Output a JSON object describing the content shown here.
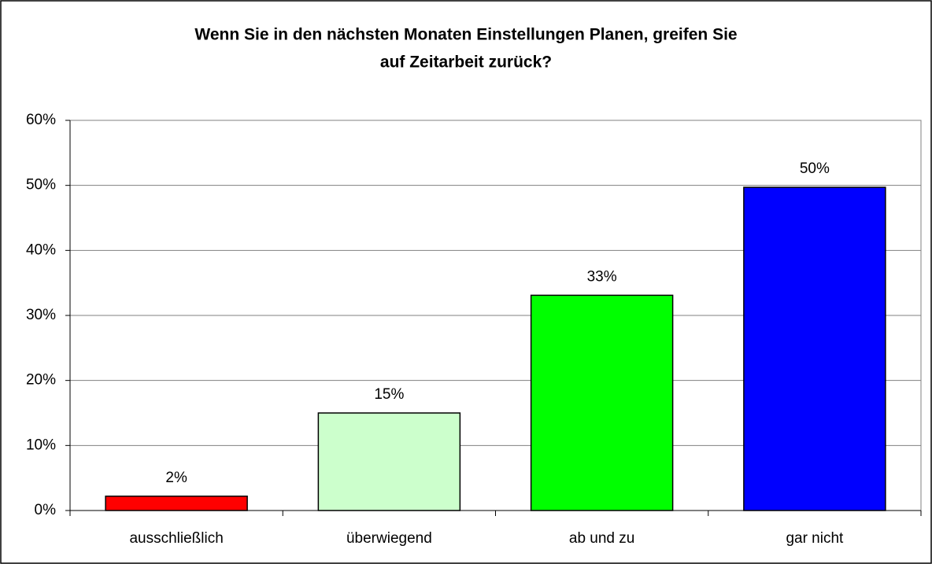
{
  "chart_data": {
    "type": "bar",
    "title": [
      "Wenn Sie in den nächsten Monaten Einstellungen Planen, greifen Sie",
      "auf Zeitarbeit zurück?"
    ],
    "categories": [
      "ausschließlich",
      "überwiegend",
      "ab und zu",
      "gar nicht"
    ],
    "values": [
      2.2,
      15,
      33.1,
      49.7
    ],
    "value_labels": [
      "2%",
      "15%",
      "33%",
      "50%"
    ],
    "colors": [
      "#ff0000",
      "#ccffcc",
      "#00ff00",
      "#0000ff"
    ],
    "ylim": [
      0,
      60
    ],
    "yticks": [
      {
        "value": 0,
        "label": "0%"
      },
      {
        "value": 10,
        "label": "10%"
      },
      {
        "value": 20,
        "label": "20%"
      },
      {
        "value": 30,
        "label": "30%"
      },
      {
        "value": 40,
        "label": "40%"
      },
      {
        "value": 50,
        "label": "50%"
      },
      {
        "value": 60,
        "label": "60%"
      }
    ],
    "grid": true
  }
}
